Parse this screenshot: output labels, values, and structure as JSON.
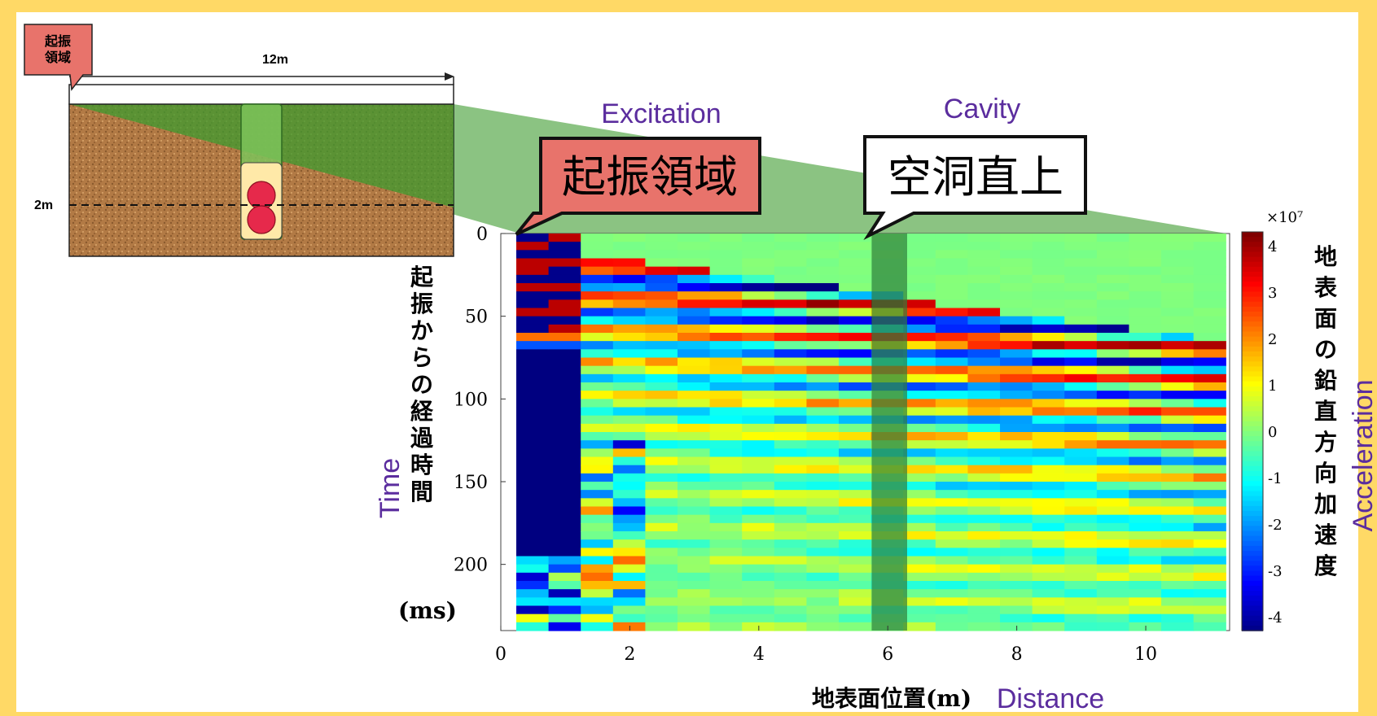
{
  "annotations": {
    "excitation_en": "Excitation",
    "cavity_en": "Cavity",
    "time_en": "Time",
    "distance_en": "Distance",
    "acceleration_en": "Acceleration",
    "excitation_ja": "起振領域",
    "cavity_ja": "空洞直上"
  },
  "inset": {
    "tag": "起振\n領域",
    "length_label": "12m",
    "depth_label": "2m"
  },
  "colors": {
    "background": "#FFD966",
    "annotation_text": "#5B2D9E",
    "excitation_callout": "#E8736B",
    "cavity_callout": "#FFFFFF",
    "projection_green": "#3E9B2F",
    "soil": "#B27A45",
    "cavity_balls": "#E6294B"
  },
  "chart_data": {
    "type": "heatmap",
    "title": "",
    "xlabel": "地表面位置(m)",
    "ylabel": "起振からの経過時間 (ms)",
    "xlim": [
      0,
      11.3
    ],
    "ylim": [
      0,
      240
    ],
    "y_reversed": true,
    "x_ticks": [
      0,
      2,
      4,
      6,
      8,
      10
    ],
    "y_ticks": [
      0,
      50,
      100,
      150,
      200
    ],
    "colorbar": {
      "label": "地表面の鉛直方向加速度",
      "exponent_label": "×10⁷",
      "range": [
        -4.3,
        4.3
      ],
      "ticks": [
        4,
        3,
        2,
        1,
        0,
        -1,
        -2,
        -3,
        -4
      ],
      "colormap": "jet"
    },
    "columns_x": [
      0.5,
      1.0,
      1.5,
      2.0,
      2.5,
      3.0,
      3.5,
      4.0,
      4.5,
      5.0,
      5.5,
      6.0,
      6.5,
      7.0,
      7.5,
      8.0,
      8.5,
      9.0,
      9.5,
      10.0,
      10.5,
      11.0
    ],
    "cavity_highlight_x": [
      5.75,
      6.3
    ],
    "grid": false
  }
}
